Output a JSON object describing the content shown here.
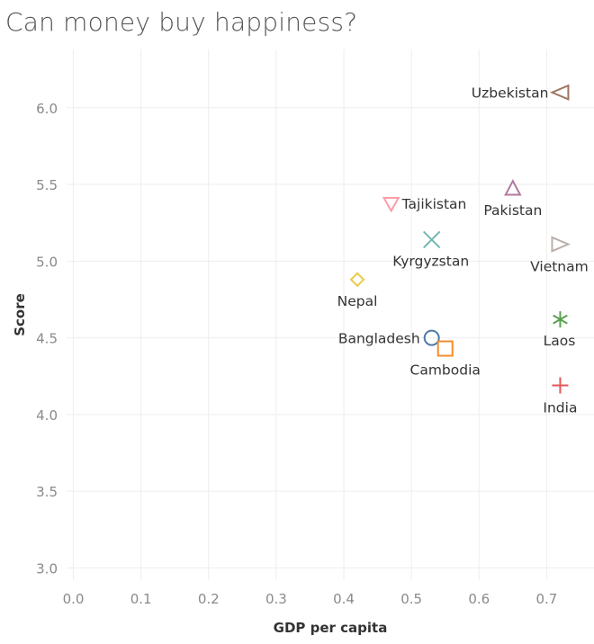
{
  "chart_data": {
    "type": "scatter",
    "title": "Can money buy happiness?",
    "xlabel": "GDP per capita",
    "ylabel": "Score",
    "xlim": [
      -0.01,
      0.77
    ],
    "ylim": [
      2.92,
      6.38
    ],
    "x_ticks": [
      "0.0",
      "0.1",
      "0.2",
      "0.3",
      "0.4",
      "0.5",
      "0.6",
      "0.7"
    ],
    "y_ticks": [
      "3.0",
      "3.5",
      "4.0",
      "4.5",
      "5.0",
      "5.5",
      "6.0"
    ],
    "grid": true,
    "legend": "none",
    "points": [
      {
        "label": "Uzbekistan",
        "x": 0.72,
        "y": 6.1,
        "marker": "triangle-left",
        "color": "#9c755f"
      },
      {
        "label": "Pakistan",
        "x": 0.65,
        "y": 5.47,
        "marker": "triangle-up",
        "color": "#b07aa1"
      },
      {
        "label": "Tajikistan",
        "x": 0.47,
        "y": 5.37,
        "marker": "triangle-down",
        "color": "#ff9da7"
      },
      {
        "label": "Kyrgyzstan",
        "x": 0.53,
        "y": 5.14,
        "marker": "x",
        "color": "#76b7b2"
      },
      {
        "label": "Vietnam",
        "x": 0.72,
        "y": 5.11,
        "marker": "triangle-right",
        "color": "#bab0ac"
      },
      {
        "label": "Nepal",
        "x": 0.42,
        "y": 4.88,
        "marker": "diamond",
        "color": "#edc948"
      },
      {
        "label": "Laos",
        "x": 0.72,
        "y": 4.62,
        "marker": "asterisk",
        "color": "#59a14f"
      },
      {
        "label": "Bangladesh",
        "x": 0.53,
        "y": 4.5,
        "marker": "circle",
        "color": "#4e79a7"
      },
      {
        "label": "Cambodia",
        "x": 0.55,
        "y": 4.43,
        "marker": "square",
        "color": "#f28e2b"
      },
      {
        "label": "India",
        "x": 0.72,
        "y": 4.19,
        "marker": "plus",
        "color": "#e15759"
      }
    ]
  }
}
